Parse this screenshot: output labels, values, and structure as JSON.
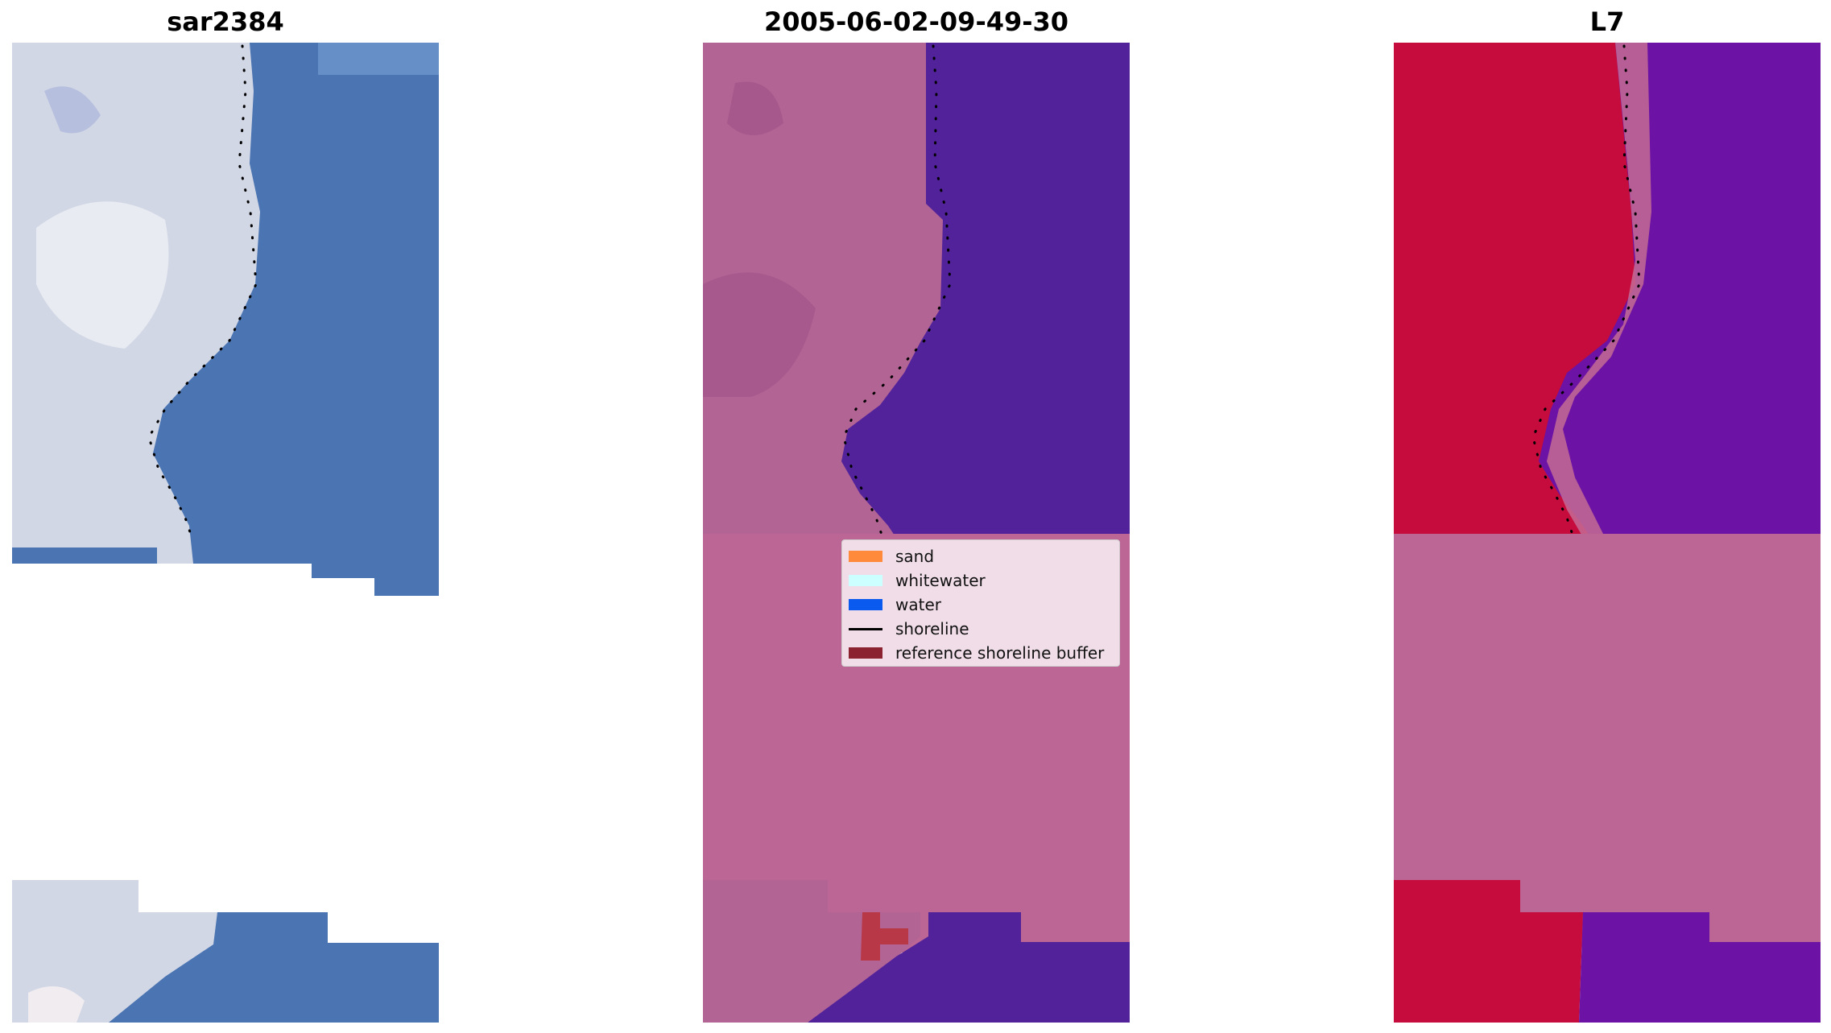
{
  "panels": [
    {
      "title": "sar2384",
      "kind": "rgb"
    },
    {
      "title": "2005-06-02-09-49-30",
      "kind": "classification"
    },
    {
      "title": "L7",
      "kind": "mndwi"
    }
  ],
  "legend": {
    "items": [
      {
        "label": "sand",
        "color": "#ff8a3c",
        "type": "patch"
      },
      {
        "label": "whitewater",
        "color": "#ccffff",
        "type": "patch"
      },
      {
        "label": "water",
        "color": "#0a5af0",
        "type": "patch"
      },
      {
        "label": "shoreline",
        "color": "#000000",
        "type": "line"
      },
      {
        "label": "reference shoreline buffer",
        "color": "#8b2230",
        "type": "patch"
      }
    ]
  },
  "colors": {
    "rgb_land": "#d2d7e6",
    "rgb_water": "#4a74b2",
    "class_land": "#b26494",
    "class_water": "#52229a",
    "class_nodata": "#bb6694",
    "class_buffer": "#b83848",
    "mndwi_land": "#c50c3c",
    "mndwi_water": "#6c12a4",
    "mndwi_nodata": "#bb6694"
  }
}
